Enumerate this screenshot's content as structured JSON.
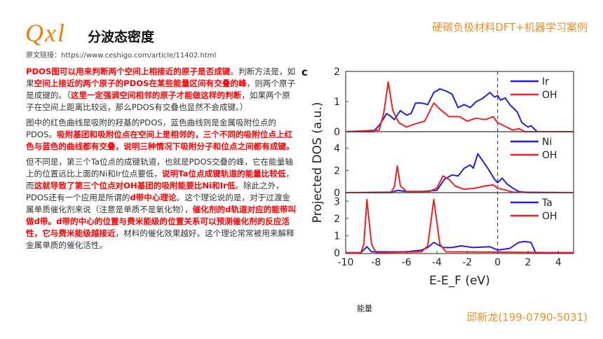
{
  "header": {
    "logo": "Qxl",
    "title": "分波态密度",
    "source": "原文链接：https://www.ceshigo.com/article/11402.html",
    "tagline": "硬碳负极材料DFT+机器学习案例"
  },
  "paragraphs": [
    [
      {
        "t": "PDOS图可以用来判断两个空间上相接近的原子是否成键",
        "red": true
      },
      {
        "t": "。判断方法是，如果",
        "red": false
      },
      {
        "t": "空间上接近的两个原子的PDOS在某些能量区间有交叠的峰",
        "red": true
      },
      {
        "t": "，则两个原子是成键的。（",
        "red": false
      },
      {
        "t": "这里一定强调空间相邻的原子才能做这样的判断",
        "red": true
      },
      {
        "t": "，如果两个原子在空间上距离比较远，那么PDOS有交叠也显然不会成键。）",
        "red": false
      }
    ],
    [
      {
        "t": "图中的红色曲线是吸附的羟基的PDOS，蓝色曲线则是金属吸附位点的PDOS。",
        "red": false
      },
      {
        "t": "吸附基团和吸附位点在空间上是相邻的，三个不同的吸附位点上红色与蓝色的曲线都有交叠，说明三种情况下吸附分子和位点之间都有成键。",
        "red": true
      }
    ],
    [
      {
        "t": "但不同是，第三个Ta位点的成键轨道，也就是PDOS交叠的峰，它在能量轴上的位置远比上面的Ni和Ir位点要低，",
        "red": false
      },
      {
        "t": "说明Ta位点成键轨道的能量比较低",
        "red": true
      },
      {
        "t": "，而",
        "red": false
      },
      {
        "t": "这就导致了第三个位点对OH基团的吸附能要比Ni和Ir低",
        "red": true
      },
      {
        "t": "。除此之外，PDOS还有一个应用是所谓的",
        "red": false
      },
      {
        "t": "d带中心理论",
        "red": true
      },
      {
        "t": "。这个理论说的是，对于过渡金属单质催化剂来说（注意是单质不是氧化物），",
        "red": false
      },
      {
        "t": "催化剂的d轨道对应的能带叫做d带。d带的中心的位置与费米能级的位置关系可以预测催化剂的反应活性，它与费米能级越接近",
        "red": true
      },
      {
        "t": "，材料的催化效果越好。这个理论常常被用来解释金属单质的催化活性。",
        "red": false
      }
    ]
  ],
  "caption": "能量",
  "contact": "邱新龙(199-0790-5031)",
  "chart_data": {
    "type": "line",
    "panel_label": "c",
    "xlabel": "E-E_F (eV)",
    "ylabel": "Projected DOS (a.u.)",
    "xlim": [
      -10,
      5
    ],
    "xticks": [
      -10,
      -8,
      -6,
      -4,
      -2,
      0,
      2,
      4
    ],
    "fermi_level": 0,
    "colors": {
      "metal": "#2020e0",
      "OH": "#f02020"
    },
    "panels": [
      {
        "ylim": [
          0,
          2
        ],
        "yticks": [
          0,
          1,
          2
        ],
        "series": [
          {
            "name": "Ir",
            "color": "metal",
            "points": [
              [
                -10,
                0
              ],
              [
                -8.2,
                0
              ],
              [
                -7.8,
                0.2
              ],
              [
                -7.3,
                0.6
              ],
              [
                -7,
                0.5
              ],
              [
                -6.8,
                0.4
              ],
              [
                -6.4,
                0.7
              ],
              [
                -6,
                0.55
              ],
              [
                -5.7,
                0.6
              ],
              [
                -5.4,
                0.95
              ],
              [
                -5,
                0.95
              ],
              [
                -4.6,
                0.9
              ],
              [
                -4.2,
                1.3
              ],
              [
                -3.8,
                1.42
              ],
              [
                -3.4,
                1.35
              ],
              [
                -3,
                1.25
              ],
              [
                -2.6,
                0.8
              ],
              [
                -2.2,
                0.9
              ],
              [
                -1.8,
                0.8
              ],
              [
                -1.4,
                1
              ],
              [
                -1,
                1.1
              ],
              [
                -0.5,
                1.3
              ],
              [
                -0.2,
                1.15
              ],
              [
                0,
                1.2
              ],
              [
                0.2,
                1.05
              ],
              [
                0.5,
                1.12
              ],
              [
                0.8,
                0.9
              ],
              [
                1.3,
                0.65
              ],
              [
                1.6,
                0.3
              ],
              [
                2,
                0.15
              ],
              [
                2.2,
                0.2
              ],
              [
                2.6,
                0
              ],
              [
                5,
                0
              ]
            ]
          },
          {
            "name": "OH",
            "color": "OH",
            "points": [
              [
                -10,
                0
              ],
              [
                -7.8,
                0.05
              ],
              [
                -7.5,
                0.6
              ],
              [
                -7.2,
                1.65
              ],
              [
                -6.9,
                0.7
              ],
              [
                -6.5,
                0.3
              ],
              [
                -6,
                0.15
              ],
              [
                -5.5,
                0.25
              ],
              [
                -4.8,
                0.35
              ],
              [
                -4.2,
                0.95
              ],
              [
                -3.8,
                0.75
              ],
              [
                -3.2,
                0.5
              ],
              [
                -2.5,
                0.5
              ],
              [
                -2,
                0.35
              ],
              [
                -1.4,
                0.45
              ],
              [
                -0.8,
                0.4
              ],
              [
                -0.3,
                0.5
              ],
              [
                0,
                0.3
              ],
              [
                0.6,
                0.15
              ],
              [
                1,
                0.05
              ],
              [
                1.4,
                0.1
              ],
              [
                1.8,
                0
              ],
              [
                5,
                0
              ]
            ]
          }
        ]
      },
      {
        "ylim": [
          0,
          5.5
        ],
        "yticks": [
          0,
          2,
          4
        ],
        "series": [
          {
            "name": "Ni",
            "color": "metal",
            "points": [
              [
                -10,
                0
              ],
              [
                -7,
                0
              ],
              [
                -6.6,
                0.2
              ],
              [
                -6,
                0.1
              ],
              [
                -5,
                0.1
              ],
              [
                -4,
                0.2
              ],
              [
                -3.5,
                1.2
              ],
              [
                -3,
                1.6
              ],
              [
                -2.6,
                1.5
              ],
              [
                -2.2,
                2.2
              ],
              [
                -1.8,
                2.5
              ],
              [
                -1.6,
                2.2
              ],
              [
                -1.3,
                3.5
              ],
              [
                -1,
                2.9
              ],
              [
                -0.6,
                2.1
              ],
              [
                -0.2,
                1.2
              ],
              [
                0,
                0.9
              ],
              [
                0.3,
                1.3
              ],
              [
                0.6,
                0.8
              ],
              [
                1,
                0.4
              ],
              [
                1.4,
                0.1
              ],
              [
                2,
                0
              ],
              [
                5,
                0
              ]
            ]
          },
          {
            "name": "OH",
            "color": "OH",
            "points": [
              [
                -10,
                0
              ],
              [
                -7,
                0.05
              ],
              [
                -6.8,
                0.5
              ],
              [
                -6.6,
                2.4
              ],
              [
                -6.4,
                0.6
              ],
              [
                -6,
                0.1
              ],
              [
                -4.5,
                0.1
              ],
              [
                -4,
                0.4
              ],
              [
                -3.6,
                1.5
              ],
              [
                -3.2,
                1.2
              ],
              [
                -2.8,
                0.6
              ],
              [
                -2.2,
                0.3
              ],
              [
                -1.5,
                0.4
              ],
              [
                -0.8,
                0.6
              ],
              [
                -0.3,
                0.7
              ],
              [
                0,
                0.4
              ],
              [
                0.6,
                0.2
              ],
              [
                1,
                0.05
              ],
              [
                5,
                0
              ]
            ]
          }
        ]
      },
      {
        "ylim": [
          -0.05,
          3.5
        ],
        "yticks": [
          0,
          1,
          2,
          3
        ],
        "series": [
          {
            "name": "Ta",
            "color": "metal",
            "points": [
              [
                -10,
                0
              ],
              [
                -9,
                0
              ],
              [
                -8.6,
                0.35
              ],
              [
                -8.3,
                0.05
              ],
              [
                -6,
                0.05
              ],
              [
                -5,
                0.15
              ],
              [
                -4.6,
                0.3
              ],
              [
                -4.2,
                0.6
              ],
              [
                -3.6,
                0.3
              ],
              [
                -3,
                0.3
              ],
              [
                -2.4,
                0.4
              ],
              [
                -1.6,
                0.3
              ],
              [
                -0.5,
                0.35
              ],
              [
                0,
                0.15
              ],
              [
                0.8,
                0.25
              ],
              [
                1.4,
                0.6
              ],
              [
                1.8,
                0.65
              ],
              [
                2.2,
                0.6
              ],
              [
                2.5,
                0
              ],
              [
                5,
                0
              ]
            ]
          },
          {
            "name": "OH",
            "color": "OH",
            "points": [
              [
                -10,
                0
              ],
              [
                -9,
                0
              ],
              [
                -8.8,
                0.5
              ],
              [
                -8.6,
                3.1
              ],
              [
                -8.3,
                0.5
              ],
              [
                -8,
                0
              ],
              [
                -5,
                0.05
              ],
              [
                -4.6,
                0.4
              ],
              [
                -4.2,
                3.1
              ],
              [
                -3.8,
                0.5
              ],
              [
                -3.4,
                0.05
              ],
              [
                5,
                0
              ]
            ]
          }
        ]
      }
    ]
  }
}
